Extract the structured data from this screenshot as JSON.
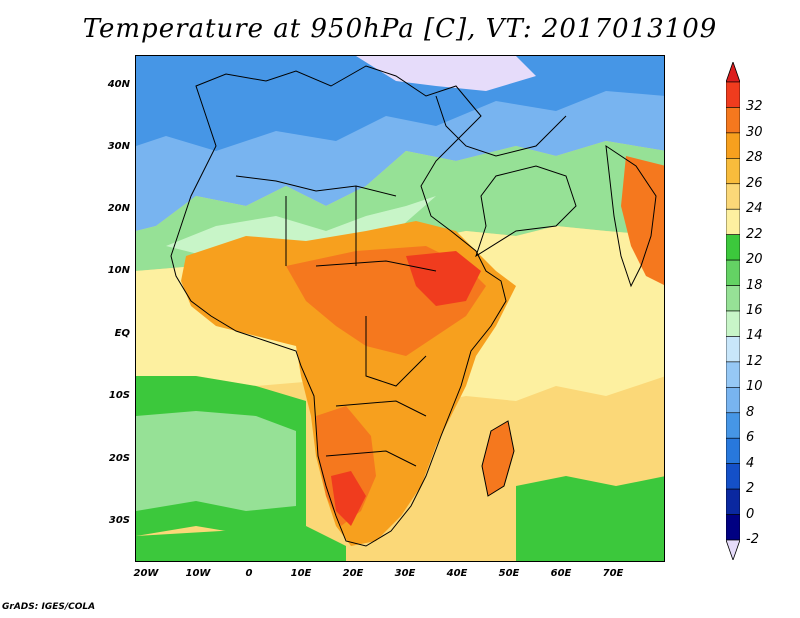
{
  "title": "Temperature at 950hPa [C], VT: 2017013109",
  "credit": "GrADS: IGES/COLA",
  "map": {
    "lat_labels": [
      "40N",
      "30N",
      "20N",
      "10N",
      "EQ",
      "10S",
      "20S",
      "30S"
    ],
    "lon_labels": [
      "20W",
      "10W",
      "0",
      "10E",
      "20E",
      "30E",
      "40E",
      "50E",
      "60E",
      "70E"
    ],
    "lon_range": [
      -22,
      80
    ],
    "lat_range": [
      -36,
      45
    ]
  },
  "legend": {
    "labels": [
      "32",
      "30",
      "28",
      "26",
      "24",
      "22",
      "20",
      "18",
      "16",
      "14",
      "12",
      "10",
      "8",
      "6",
      "4",
      "2",
      "0",
      "-2"
    ],
    "colors": [
      "#f03c1e",
      "#f5781e",
      "#f7a01e",
      "#f8bc3c",
      "#fbd878",
      "#fdf0a0",
      "#3cc83c",
      "#64d264",
      "#96e196",
      "#c8f5c8",
      "#c8e6fa",
      "#96c8f5",
      "#78b4f0",
      "#4696e6",
      "#2878dc",
      "#1450c8",
      "#0a28a0",
      "#000082"
    ],
    "over_color": "#dc1e1e",
    "under_color": "#e6dcfa"
  },
  "palette": {
    "ocean_warm": "#fbd878",
    "ocean_mid": "#fdf0a0",
    "ocean_green": "#3cc83c",
    "ocean_light_green": "#96e196",
    "north_blue": "#96c8f5",
    "north_cold": "#4696e6",
    "land_hot": "#f5781e",
    "land_warm": "#f7a01e",
    "land_very_hot": "#f03c1e"
  }
}
